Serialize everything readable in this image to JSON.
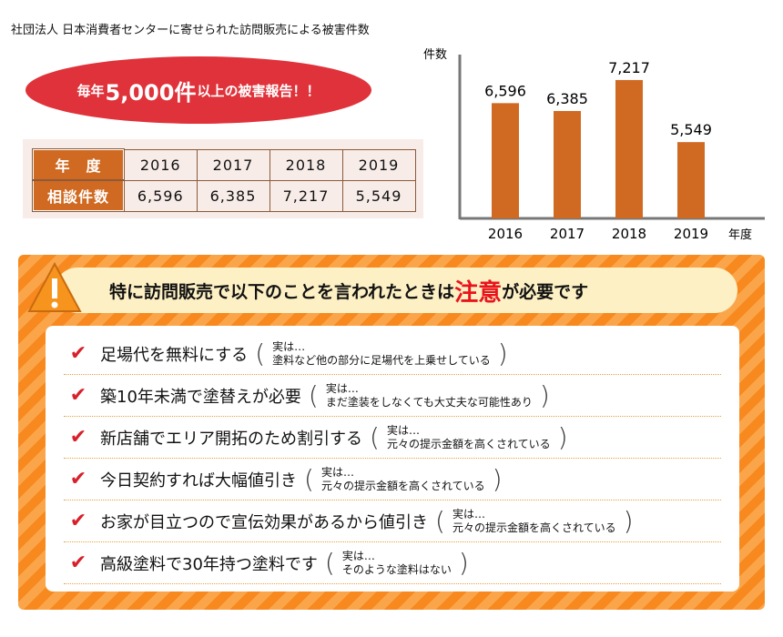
{
  "title": "社団法人 日本消費者センターに寄せられた訪問販売による被害件数",
  "banner": {
    "pre": "毎年",
    "big": "5,000件",
    "post": "以上の被害報告！！"
  },
  "table": {
    "header_year": "年　度",
    "header_count": "相談件数",
    "years": [
      "2016",
      "2017",
      "2018",
      "2019"
    ],
    "counts": [
      "6,596",
      "6,385",
      "7,217",
      "5,549"
    ]
  },
  "chart_data": {
    "type": "bar",
    "categories": [
      "2016",
      "2017",
      "2018",
      "2019"
    ],
    "values": [
      6596,
      6385,
      7217,
      5549
    ],
    "data_labels": [
      "6,596",
      "6,385",
      "7,217",
      "5,549"
    ],
    "ylabel": "件数",
    "xlabel": "年度",
    "ylim": [
      3500,
      7900
    ],
    "grid": false,
    "bar_color": "#d06a22"
  },
  "warning": {
    "pre": "特に訪問販売で以下のことを言われたときは",
    "red": "注意",
    "post": "が必要です",
    "items": [
      {
        "main": "足場代を無料にする",
        "note1": "実は…",
        "note2": "塗料など他の部分に足場代を上乗せしている"
      },
      {
        "main": "築10年未満で塗替えが必要",
        "note1": "実は…",
        "note2": "まだ塗装をしなくても大丈夫な可能性あり"
      },
      {
        "main": "新店舗でエリア開拓のため割引する",
        "note1": "実は…",
        "note2": "元々の提示金額を高くされている"
      },
      {
        "main": "今日契約すれば大幅値引き",
        "note1": "実は…",
        "note2": "元々の提示金額を高くされている"
      },
      {
        "main": "お家が目立つので宣伝効果があるから値引き",
        "note1": "実は…",
        "note2": "元々の提示金額を高くされている"
      },
      {
        "main": "高級塗料で30年持つ塗料です",
        "note1": "実は…",
        "note2": "そのような塗料はない"
      }
    ]
  }
}
